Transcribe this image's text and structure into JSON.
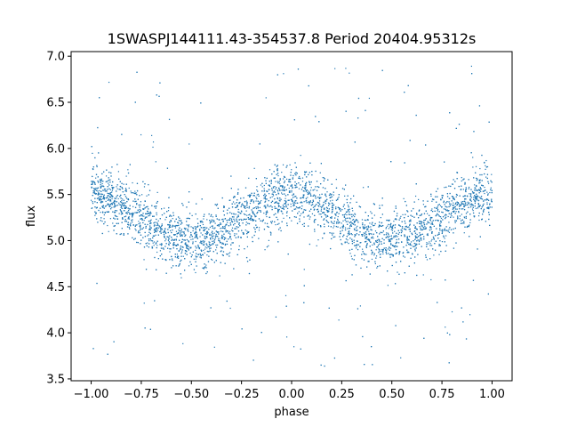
{
  "chart_data": {
    "type": "scatter",
    "title": "1SWASPJ144111.43-354537.8 Period 20404.95312s",
    "xlabel": "phase",
    "ylabel": "flux",
    "xlim": [
      -1.1,
      1.1
    ],
    "ylim": [
      3.48,
      7.05
    ],
    "xticks": [
      -1.0,
      -0.75,
      -0.5,
      -0.25,
      0.0,
      0.25,
      0.5,
      0.75,
      1.0
    ],
    "xtick_labels": [
      "−1.00",
      "−0.75",
      "−0.50",
      "−0.25",
      "0.00",
      "0.25",
      "0.50",
      "0.75",
      "1.00"
    ],
    "yticks": [
      3.5,
      4.0,
      4.5,
      5.0,
      5.5,
      6.0,
      6.5,
      7.0
    ],
    "ytick_labels": [
      "3.5",
      "4.0",
      "4.5",
      "5.0",
      "5.5",
      "6.0",
      "6.5",
      "7.0"
    ],
    "grid": false,
    "series": [
      {
        "color": "#1f77b4",
        "description_model": "sinusoidal light curve folded over two phase cycles",
        "x_range": [
          -1.0,
          1.0
        ],
        "mean_flux": 5.25,
        "amplitude": 0.25,
        "maxima_at_phase": [
          -1.0,
          0.0,
          1.0
        ],
        "minima_at_phase": [
          -0.5,
          0.5
        ],
        "scatter_std": 0.16,
        "outlier_range": [
          3.6,
          6.9
        ],
        "anchor_points": [
          {
            "x": -1.0,
            "y": 5.5
          },
          {
            "x": -0.75,
            "y": 5.25
          },
          {
            "x": -0.5,
            "y": 5.0
          },
          {
            "x": -0.25,
            "y": 5.25
          },
          {
            "x": 0.0,
            "y": 5.5
          },
          {
            "x": 0.25,
            "y": 5.25
          },
          {
            "x": 0.5,
            "y": 5.0
          },
          {
            "x": 0.75,
            "y": 5.25
          },
          {
            "x": 1.0,
            "y": 5.5
          }
        ]
      }
    ]
  }
}
